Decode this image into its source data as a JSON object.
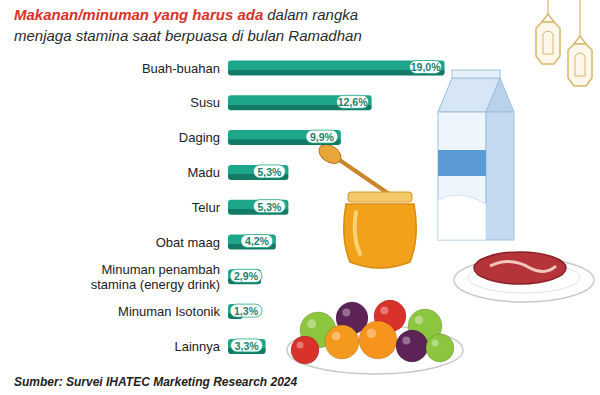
{
  "chart_data": {
    "type": "bar",
    "orientation": "horizontal",
    "title": "Makanan/minuman yang harus ada",
    "subtitle": "dalam rangka menjaga stamina saat berpuasa di bulan Ramadhan",
    "categories": [
      "Buah-buahan",
      "Susu",
      "Daging",
      "Madu",
      "Telur",
      "Obat maag",
      "Minuman penambah stamina (energy drink)",
      "Minuman Isotonik",
      "Lainnya"
    ],
    "values": [
      19.0,
      12.6,
      9.9,
      5.3,
      5.3,
      4.2,
      2.9,
      1.3,
      3.3
    ],
    "value_labels": [
      "19,0%",
      "12,6%",
      "9,9%",
      "5,3%",
      "5,3%",
      "4,2%",
      "2,9%",
      "1,3%",
      "3,3%"
    ],
    "xlim": [
      0,
      20
    ],
    "color": "#1ea68b",
    "data_labels": true,
    "tick_labels": false,
    "grid": false,
    "annotations": [
      "Sumber: Survei IHATEC Marketing Research 2024"
    ]
  }
}
